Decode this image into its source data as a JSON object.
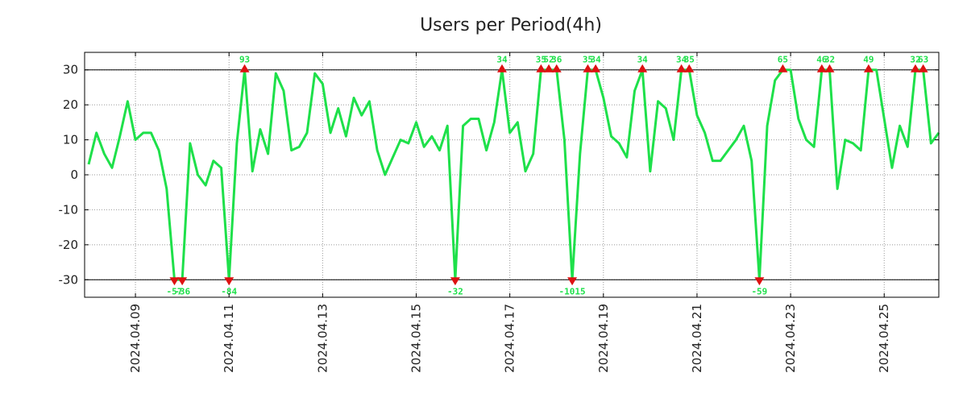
{
  "chart_data": {
    "type": "line",
    "title": "Users per Period(4h)",
    "xlabel": "",
    "ylabel": "",
    "ylim": [
      -35,
      35
    ],
    "yticks": [
      -30,
      -20,
      -10,
      0,
      10,
      20,
      30
    ],
    "ytick_labels": [
      "-30",
      "-20",
      "-10",
      "0",
      "10",
      "20",
      "30"
    ],
    "x_start": "2024.04.08 00:00",
    "x_step_hours": 4,
    "x_tick_indices": [
      6,
      18,
      30,
      42,
      54,
      66,
      78,
      90,
      102
    ],
    "x_tick_labels": [
      "2024.04.09",
      "2024.04.11",
      "2024.04.13",
      "2024.04.15",
      "2024.04.17",
      "2024.04.19",
      "2024.04.21",
      "2024.04.23",
      "2024.04.25"
    ],
    "clip_lines": [
      30,
      -30
    ],
    "grid": true,
    "line_color": "#1ee04a",
    "marker_color": "#dd1111",
    "annotation_color": "#1ee04a",
    "series": [
      {
        "name": "Users",
        "values": [
          3,
          12,
          6,
          2,
          11,
          21,
          10,
          12,
          12,
          7,
          -4,
          -30,
          -30,
          9,
          0,
          -3,
          4,
          2,
          -30,
          9,
          30,
          1,
          13,
          6,
          29,
          24,
          7,
          8,
          12,
          29,
          26,
          12,
          19,
          11,
          22,
          17,
          21,
          7,
          0,
          5,
          10,
          9,
          15,
          8,
          11,
          7,
          14,
          -30,
          14,
          16,
          16,
          7,
          15,
          30,
          12,
          15,
          1,
          6,
          30,
          30,
          30,
          10,
          -30,
          6,
          30,
          30,
          22,
          11,
          9,
          5,
          24,
          30,
          1,
          21,
          19,
          10,
          30,
          30,
          17,
          12,
          4,
          4,
          7,
          10,
          14,
          4,
          -30,
          14,
          27,
          30,
          30,
          16,
          10,
          8,
          30,
          30,
          -4,
          10,
          9,
          7,
          30,
          30,
          16,
          2,
          14,
          8,
          30,
          30,
          9,
          12
        ]
      }
    ],
    "annotations": [
      {
        "index": 11,
        "text": "-57",
        "side": "below"
      },
      {
        "index": 12,
        "text": "-36",
        "side": "below"
      },
      {
        "index": 18,
        "text": "-84",
        "side": "below"
      },
      {
        "index": 20,
        "text": "93",
        "side": "above"
      },
      {
        "index": 47,
        "text": "-32",
        "side": "below"
      },
      {
        "index": 53,
        "text": "34",
        "side": "above"
      },
      {
        "index": 58,
        "text": "35",
        "side": "above"
      },
      {
        "index": 59,
        "text": "52",
        "side": "above"
      },
      {
        "index": 60,
        "text": "36",
        "side": "above"
      },
      {
        "index": 62,
        "text": "-1015",
        "side": "below"
      },
      {
        "index": 64,
        "text": "35",
        "side": "above"
      },
      {
        "index": 65,
        "text": "34",
        "side": "above"
      },
      {
        "index": 71,
        "text": "34",
        "side": "above"
      },
      {
        "index": 76,
        "text": "34",
        "side": "above"
      },
      {
        "index": 77,
        "text": "35",
        "side": "above"
      },
      {
        "index": 86,
        "text": "-59",
        "side": "below"
      },
      {
        "index": 89,
        "text": "65",
        "side": "above"
      },
      {
        "index": 94,
        "text": "46",
        "side": "above"
      },
      {
        "index": 95,
        "text": "32",
        "side": "above"
      },
      {
        "index": 100,
        "text": "49",
        "side": "above"
      },
      {
        "index": 106,
        "text": "32",
        "side": "above"
      },
      {
        "index": 107,
        "text": "63",
        "side": "above"
      }
    ]
  }
}
